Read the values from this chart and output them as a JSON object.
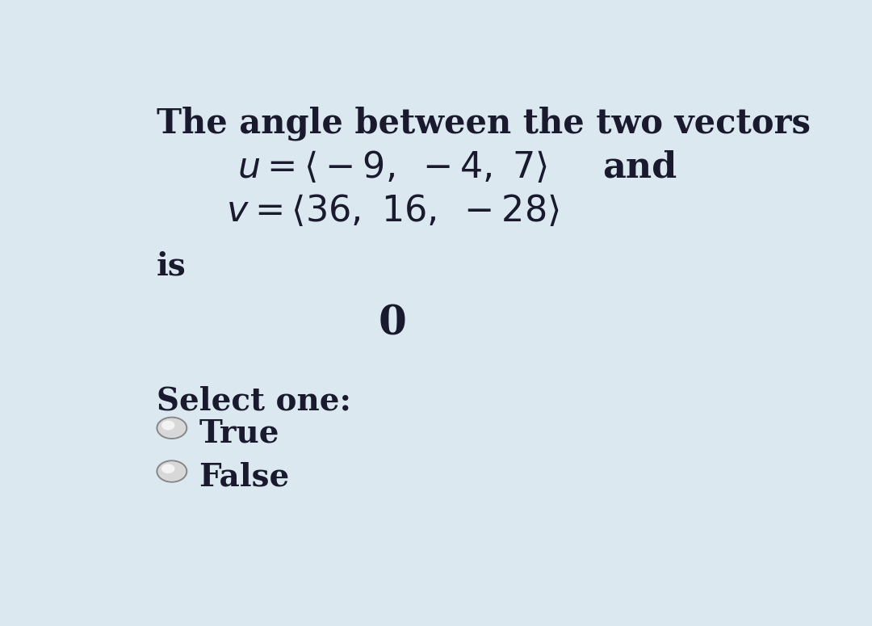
{
  "background_color": "#dce8f0",
  "title_text": "The angle between the two vectors",
  "line2_math": "$\\mathit{u} = \\langle -9,\\ -4,\\ 7\\rangle$",
  "line2_and": "and",
  "line3_math": "$\\mathit{v} = \\langle 36,\\ 16,\\ -28\\rangle$",
  "is_text": "is",
  "answer_text": "0",
  "select_text": "Select one:",
  "true_text": "True",
  "false_text": "False",
  "text_color": "#1a1a2e",
  "font_size_title": 30,
  "font_size_math": 32,
  "font_size_body": 28,
  "font_size_answer": 36,
  "fig_width": 10.8,
  "fig_height": 7.75
}
